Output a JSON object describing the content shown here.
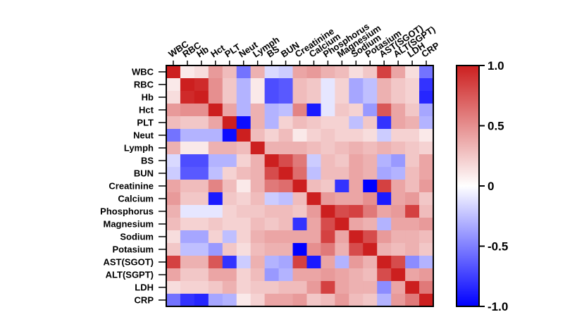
{
  "chart_data": {
    "type": "heatmap",
    "title": "",
    "xlabel": "",
    "ylabel": "",
    "variables": [
      "WBC",
      "RBC",
      "Hb",
      "Hct",
      "PLT",
      "Neut",
      "Lymph",
      "BS",
      "BUN",
      "Creatinine",
      "Calcium",
      "Phosphorus",
      "Magnesium",
      "Sodium",
      "Potasium",
      "AST(SGOT)",
      "ALT(SGPT)",
      "LDH",
      "CRP"
    ],
    "zlim": [
      -1,
      1
    ],
    "colorbar": {
      "ticks": [
        1.0,
        0.5,
        0,
        -0.5,
        -1.0
      ],
      "tick_labels": [
        "1.0",
        "0.5",
        "0",
        "-0.5",
        "-1.0"
      ],
      "colors": {
        "low": "#0000ff",
        "mid": "#ffffff",
        "high": "#cc1f1f"
      }
    },
    "matrix": [
      [
        1.0,
        0.1,
        0.15,
        0.45,
        0.3,
        -0.55,
        0.35,
        -0.15,
        -0.2,
        0.4,
        0.45,
        0.35,
        0.3,
        0.15,
        0.25,
        0.85,
        0.4,
        0.15,
        -0.55
      ],
      [
        0.1,
        1.0,
        0.95,
        0.5,
        0.25,
        -0.3,
        0.1,
        -0.7,
        -0.65,
        0.3,
        0.25,
        -0.1,
        0.2,
        -0.35,
        -0.25,
        0.35,
        0.25,
        0.2,
        -0.8
      ],
      [
        0.15,
        0.95,
        1.0,
        0.5,
        0.25,
        -0.3,
        0.1,
        -0.7,
        -0.65,
        0.3,
        0.25,
        -0.1,
        0.2,
        -0.35,
        -0.25,
        0.35,
        0.25,
        0.2,
        -0.85
      ],
      [
        0.45,
        0.5,
        0.5,
        1.0,
        0.4,
        -0.3,
        0.35,
        -0.3,
        -0.25,
        0.55,
        -0.9,
        -0.1,
        0.25,
        0.2,
        -0.4,
        0.75,
        0.4,
        0.25,
        -0.35
      ],
      [
        0.3,
        0.25,
        0.25,
        0.4,
        1.0,
        -0.95,
        0.35,
        -0.3,
        0.2,
        0.3,
        0.25,
        0.2,
        0.2,
        -0.25,
        0.25,
        -0.8,
        0.4,
        0.35,
        -0.3
      ],
      [
        -0.55,
        -0.3,
        -0.3,
        -0.3,
        -0.95,
        1.0,
        0.3,
        0.2,
        0.3,
        0.1,
        0.2,
        0.25,
        0.2,
        0.2,
        0.15,
        -0.2,
        0.2,
        0.2,
        0.1
      ],
      [
        0.35,
        0.1,
        0.1,
        0.35,
        0.35,
        0.3,
        1.0,
        0.35,
        0.35,
        0.35,
        0.3,
        0.25,
        0.3,
        0.35,
        0.3,
        0.35,
        0.3,
        0.25,
        0.2
      ],
      [
        -0.15,
        -0.7,
        -0.7,
        -0.3,
        -0.3,
        0.2,
        0.35,
        1.0,
        0.8,
        0.6,
        -0.2,
        0.3,
        0.25,
        0.4,
        0.35,
        -0.3,
        -0.4,
        0.25,
        0.4
      ],
      [
        -0.2,
        -0.65,
        -0.65,
        -0.25,
        0.2,
        0.3,
        0.35,
        0.8,
        1.0,
        0.65,
        -0.25,
        0.3,
        0.3,
        0.4,
        0.35,
        -0.35,
        -0.3,
        0.3,
        0.4
      ],
      [
        0.4,
        0.3,
        0.3,
        0.55,
        0.3,
        0.1,
        0.35,
        0.6,
        0.65,
        1.0,
        0.3,
        0.25,
        -0.8,
        0.4,
        -1.0,
        0.85,
        0.4,
        0.3,
        0.45
      ],
      [
        0.45,
        0.25,
        0.25,
        -0.9,
        0.25,
        0.2,
        0.3,
        -0.2,
        -0.25,
        0.3,
        1.0,
        0.45,
        0.4,
        0.4,
        0.5,
        -0.9,
        0.4,
        0.45,
        0.25
      ],
      [
        0.35,
        -0.1,
        -0.1,
        -0.1,
        0.2,
        0.25,
        0.25,
        0.3,
        0.3,
        0.25,
        0.45,
        1.0,
        0.8,
        0.85,
        0.6,
        0.4,
        0.45,
        0.85,
        0.3
      ],
      [
        0.3,
        0.2,
        0.2,
        0.25,
        0.2,
        0.2,
        0.3,
        0.25,
        0.3,
        -0.8,
        0.4,
        0.8,
        1.0,
        0.4,
        0.35,
        -0.3,
        0.4,
        0.4,
        0.45
      ],
      [
        0.15,
        -0.35,
        -0.35,
        0.2,
        -0.25,
        0.2,
        0.35,
        0.4,
        0.4,
        0.4,
        0.4,
        0.85,
        0.4,
        1.0,
        0.8,
        0.45,
        0.35,
        0.35,
        0.3
      ],
      [
        0.25,
        -0.25,
        -0.25,
        -0.4,
        0.25,
        0.15,
        0.3,
        0.35,
        0.35,
        -1.0,
        0.5,
        0.6,
        0.35,
        0.8,
        1.0,
        0.35,
        0.3,
        0.35,
        0.25
      ],
      [
        0.85,
        0.35,
        0.35,
        0.75,
        -0.8,
        -0.2,
        0.35,
        -0.3,
        -0.35,
        0.85,
        -0.9,
        0.4,
        -0.3,
        0.45,
        0.35,
        1.0,
        0.8,
        -0.45,
        -0.3
      ],
      [
        0.4,
        0.25,
        0.25,
        0.4,
        0.4,
        0.2,
        0.3,
        -0.4,
        -0.3,
        0.4,
        0.4,
        0.45,
        0.4,
        0.35,
        0.3,
        0.8,
        1.0,
        0.4,
        0.45
      ],
      [
        0.15,
        0.2,
        0.2,
        0.25,
        0.35,
        0.2,
        0.25,
        0.25,
        0.3,
        0.3,
        0.45,
        0.85,
        0.4,
        0.35,
        0.35,
        -0.45,
        0.4,
        1.0,
        0.6
      ],
      [
        -0.55,
        -0.8,
        -0.85,
        -0.35,
        -0.3,
        0.1,
        0.2,
        0.4,
        0.4,
        0.45,
        0.25,
        0.3,
        0.45,
        0.3,
        0.25,
        -0.3,
        0.45,
        0.6,
        1.0
      ]
    ]
  }
}
